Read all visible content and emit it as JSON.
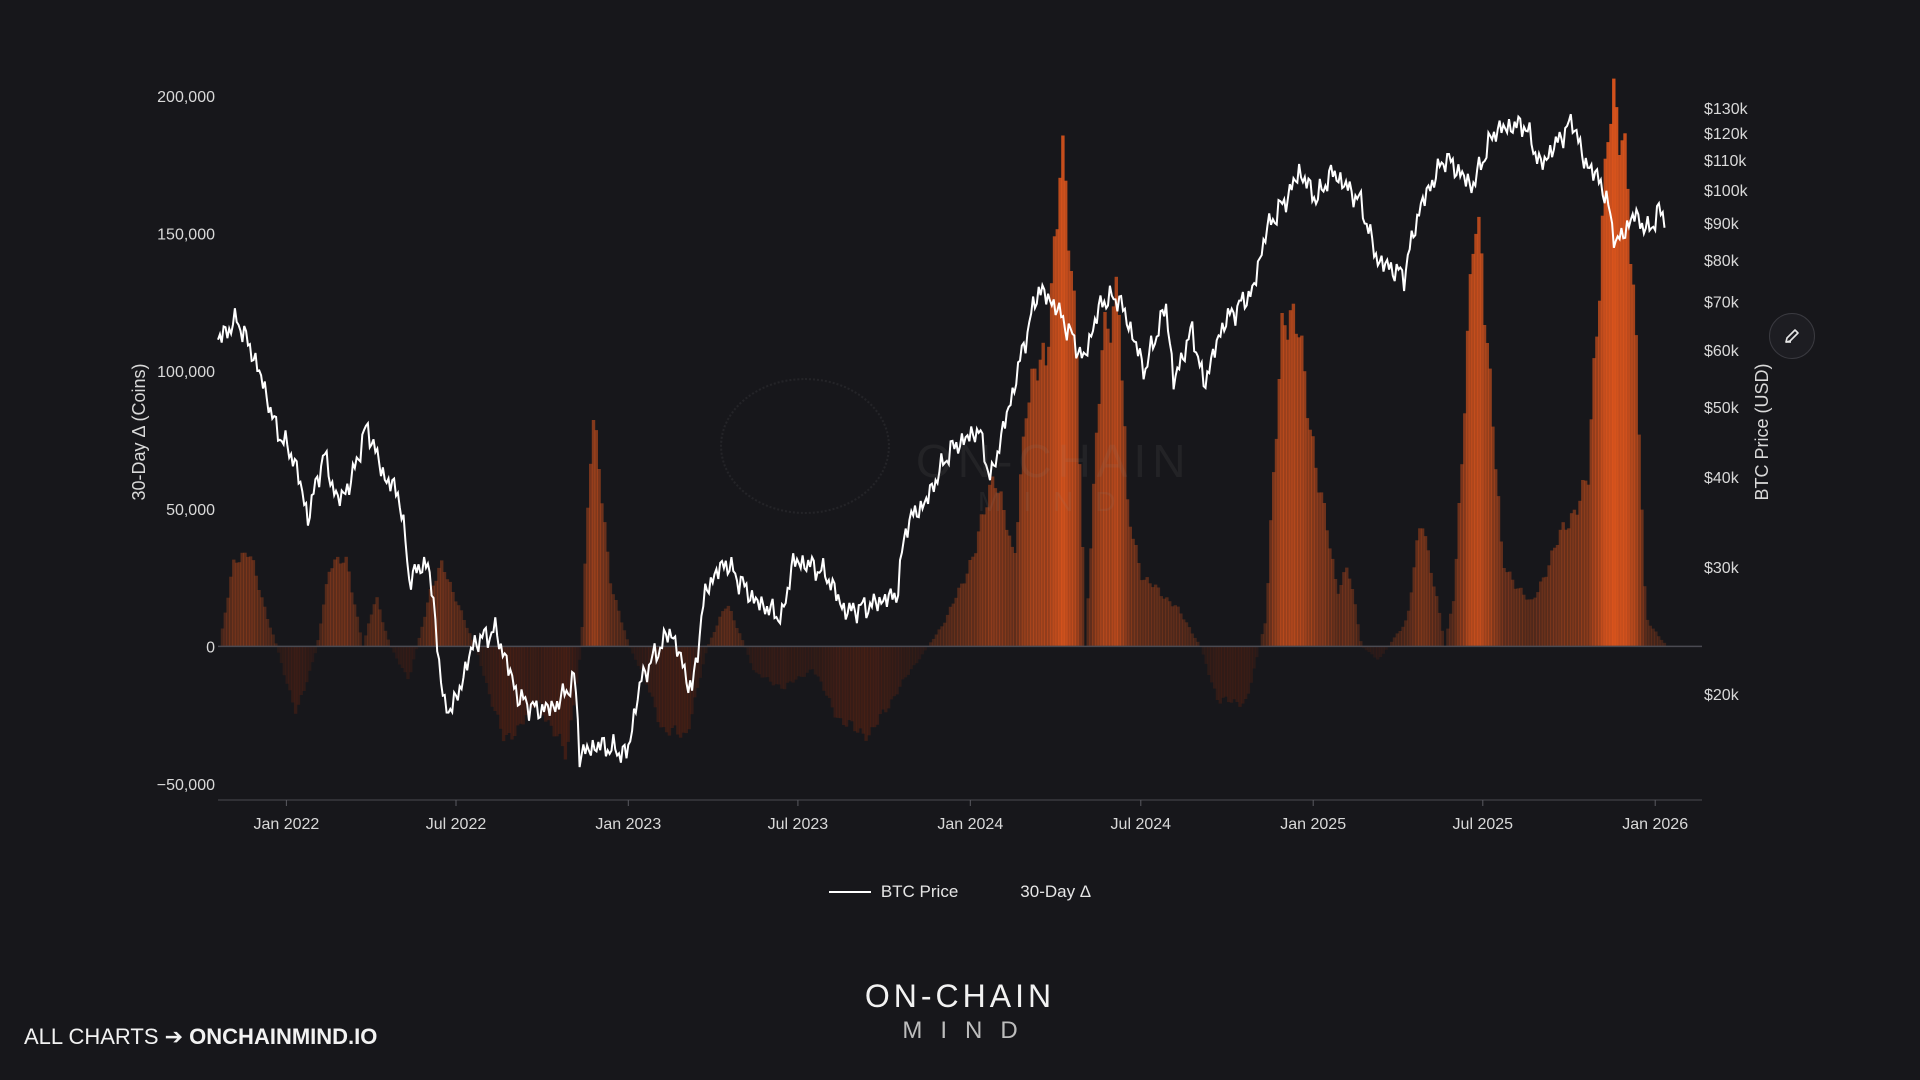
{
  "chart_data": {
    "type": "area+line",
    "title": "",
    "left_axis": {
      "label": "30-Day Δ (Coins)",
      "range": [
        -50000,
        200000
      ],
      "ticks": [
        {
          "value": -50000,
          "label": "−50,000"
        },
        {
          "value": 0,
          "label": "0"
        },
        {
          "value": 50000,
          "label": "50,000"
        },
        {
          "value": 100000,
          "label": "100,000"
        },
        {
          "value": 150000,
          "label": "150,000"
        },
        {
          "value": 200000,
          "label": "200,000"
        }
      ]
    },
    "right_axis": {
      "label": "BTC Price (USD)",
      "scale": "log",
      "range": [
        15000,
        135000
      ],
      "ticks": [
        {
          "value": 20000,
          "label": "$20k"
        },
        {
          "value": 30000,
          "label": "$30k"
        },
        {
          "value": 40000,
          "label": "$40k"
        },
        {
          "value": 50000,
          "label": "$50k"
        },
        {
          "value": 60000,
          "label": "$60k"
        },
        {
          "value": 70000,
          "label": "$70k"
        },
        {
          "value": 80000,
          "label": "$80k"
        },
        {
          "value": 90000,
          "label": "$90k"
        },
        {
          "value": 100000,
          "label": "$100k"
        },
        {
          "value": 110000,
          "label": "$110k"
        },
        {
          "value": 120000,
          "label": "$120k"
        },
        {
          "value": 130000,
          "label": "$130k"
        }
      ]
    },
    "x_axis": {
      "range": [
        "2021-10-20",
        "2026-02-20"
      ],
      "ticks": [
        {
          "value": "2022-01-01",
          "label": "Jan 2022"
        },
        {
          "value": "2022-07-01",
          "label": "Jul 2022"
        },
        {
          "value": "2023-01-01",
          "label": "Jan 2023"
        },
        {
          "value": "2023-07-01",
          "label": "Jul 2023"
        },
        {
          "value": "2024-01-01",
          "label": "Jan 2024"
        },
        {
          "value": "2024-07-01",
          "label": "Jul 2024"
        },
        {
          "value": "2025-01-01",
          "label": "Jan 2025"
        },
        {
          "value": "2025-07-01",
          "label": "Jul 2025"
        },
        {
          "value": "2026-01-01",
          "label": "Jan 2026"
        }
      ]
    },
    "series": [
      {
        "name": "BTC Price",
        "axis": "right",
        "color": "#ffffff",
        "points": [
          [
            "2021-10-20",
            62000
          ],
          [
            "2021-11-10",
            66000
          ],
          [
            "2021-12-01",
            57000
          ],
          [
            "2021-12-20",
            47000
          ],
          [
            "2022-01-10",
            42000
          ],
          [
            "2022-01-24",
            35000
          ],
          [
            "2022-02-10",
            43000
          ],
          [
            "2022-02-24",
            37000
          ],
          [
            "2022-03-10",
            39000
          ],
          [
            "2022-03-28",
            47000
          ],
          [
            "2022-04-15",
            40000
          ],
          [
            "2022-05-01",
            38000
          ],
          [
            "2022-05-12",
            29000
          ],
          [
            "2022-06-01",
            30500
          ],
          [
            "2022-06-18",
            19000
          ],
          [
            "2022-07-01",
            19500
          ],
          [
            "2022-07-20",
            23500
          ],
          [
            "2022-08-12",
            24500
          ],
          [
            "2022-09-05",
            19800
          ],
          [
            "2022-09-25",
            19000
          ],
          [
            "2022-10-15",
            19200
          ],
          [
            "2022-11-05",
            21000
          ],
          [
            "2022-11-10",
            16500
          ],
          [
            "2022-12-01",
            17000
          ],
          [
            "2022-12-31",
            16500
          ],
          [
            "2023-01-15",
            21000
          ],
          [
            "2023-02-15",
            24500
          ],
          [
            "2023-03-10",
            20000
          ],
          [
            "2023-03-25",
            28000
          ],
          [
            "2023-04-14",
            30500
          ],
          [
            "2023-05-15",
            27000
          ],
          [
            "2023-06-15",
            25500
          ],
          [
            "2023-06-25",
            30500
          ],
          [
            "2023-07-15",
            30200
          ],
          [
            "2023-08-01",
            29200
          ],
          [
            "2023-08-20",
            26000
          ],
          [
            "2023-09-15",
            26500
          ],
          [
            "2023-10-15",
            27500
          ],
          [
            "2023-10-25",
            34500
          ],
          [
            "2023-11-15",
            37000
          ],
          [
            "2023-12-10",
            43500
          ],
          [
            "2024-01-10",
            46500
          ],
          [
            "2024-01-23",
            39500
          ],
          [
            "2024-02-15",
            52000
          ],
          [
            "2024-03-05",
            66000
          ],
          [
            "2024-03-14",
            73000
          ],
          [
            "2024-04-01",
            69000
          ],
          [
            "2024-05-01",
            58000
          ],
          [
            "2024-05-20",
            70000
          ],
          [
            "2024-06-07",
            71000
          ],
          [
            "2024-07-05",
            56000
          ],
          [
            "2024-07-28",
            69000
          ],
          [
            "2024-08-05",
            54000
          ],
          [
            "2024-08-25",
            64000
          ],
          [
            "2024-09-06",
            53500
          ],
          [
            "2024-09-28",
            65500
          ],
          [
            "2024-10-29",
            72500
          ],
          [
            "2024-11-12",
            88000
          ],
          [
            "2024-12-05",
            98000
          ],
          [
            "2024-12-17",
            106000
          ],
          [
            "2025-01-05",
            97000
          ],
          [
            "2025-01-21",
            106000
          ],
          [
            "2025-02-20",
            96500
          ],
          [
            "2025-03-10",
            80000
          ],
          [
            "2025-04-08",
            76000
          ],
          [
            "2025-04-25",
            94500
          ],
          [
            "2025-05-22",
            111000
          ],
          [
            "2025-06-20",
            101000
          ],
          [
            "2025-07-14",
            121000
          ],
          [
            "2025-08-14",
            123500
          ],
          [
            "2025-09-01",
            108000
          ],
          [
            "2025-10-06",
            125000
          ],
          [
            "2025-10-15",
            111000
          ],
          [
            "2025-11-05",
            102000
          ],
          [
            "2025-11-21",
            84000
          ],
          [
            "2025-12-10",
            92500
          ],
          [
            "2025-12-25",
            87500
          ],
          [
            "2026-01-05",
            93500
          ],
          [
            "2026-01-12",
            91000
          ]
        ]
      },
      {
        "name": "30-Day Δ",
        "axis": "left",
        "color": "#e0561d",
        "points": [
          [
            "2021-10-20",
            0
          ],
          [
            "2021-11-05",
            32000
          ],
          [
            "2021-11-20",
            35000
          ],
          [
            "2021-12-05",
            16000
          ],
          [
            "2021-12-20",
            0
          ],
          [
            "2022-01-10",
            -25000
          ],
          [
            "2022-02-01",
            0
          ],
          [
            "2022-02-15",
            31000
          ],
          [
            "2022-03-05",
            30000
          ],
          [
            "2022-03-22",
            0
          ],
          [
            "2022-04-05",
            18000
          ],
          [
            "2022-04-20",
            0
          ],
          [
            "2022-05-10",
            -12000
          ],
          [
            "2022-06-01",
            18000
          ],
          [
            "2022-06-15",
            32000
          ],
          [
            "2022-06-25",
            20000
          ],
          [
            "2022-07-20",
            0
          ],
          [
            "2022-08-20",
            -35000
          ],
          [
            "2022-09-25",
            -20000
          ],
          [
            "2022-10-25",
            -40000
          ],
          [
            "2022-11-10",
            0
          ],
          [
            "2022-11-22",
            88000
          ],
          [
            "2022-12-10",
            25000
          ],
          [
            "2022-12-31",
            0
          ],
          [
            "2023-01-15",
            -10000
          ],
          [
            "2023-02-05",
            -30000
          ],
          [
            "2023-03-01",
            -33000
          ],
          [
            "2023-03-25",
            0
          ],
          [
            "2023-04-15",
            16000
          ],
          [
            "2023-05-15",
            -10000
          ],
          [
            "2023-06-15",
            -15000
          ],
          [
            "2023-07-15",
            -8000
          ],
          [
            "2023-08-15",
            -28000
          ],
          [
            "2023-09-15",
            -32000
          ],
          [
            "2023-10-15",
            -15000
          ],
          [
            "2023-11-15",
            0
          ],
          [
            "2023-12-05",
            10000
          ],
          [
            "2024-01-05",
            35000
          ],
          [
            "2024-01-25",
            65000
          ],
          [
            "2024-02-15",
            30000
          ],
          [
            "2024-02-28",
            90000
          ],
          [
            "2024-03-20",
            105000
          ],
          [
            "2024-04-05",
            180000
          ],
          [
            "2024-04-22",
            110000
          ],
          [
            "2024-05-01",
            0
          ],
          [
            "2024-05-20",
            115000
          ],
          [
            "2024-06-05",
            130000
          ],
          [
            "2024-06-15",
            50000
          ],
          [
            "2024-07-01",
            25000
          ],
          [
            "2024-08-05",
            15000
          ],
          [
            "2024-09-01",
            0
          ],
          [
            "2024-09-20",
            -20000
          ],
          [
            "2024-10-20",
            -20000
          ],
          [
            "2024-11-10",
            10000
          ],
          [
            "2024-11-28",
            125000
          ],
          [
            "2024-12-15",
            112000
          ],
          [
            "2025-01-05",
            60000
          ],
          [
            "2025-01-25",
            20000
          ],
          [
            "2025-02-05",
            30000
          ],
          [
            "2025-02-20",
            0
          ],
          [
            "2025-03-10",
            -5000
          ],
          [
            "2025-04-10",
            10000
          ],
          [
            "2025-04-25",
            48000
          ],
          [
            "2025-05-20",
            0
          ],
          [
            "2025-05-30",
            20000
          ],
          [
            "2025-06-20",
            151000
          ],
          [
            "2025-06-28",
            145000
          ],
          [
            "2025-07-20",
            30000
          ],
          [
            "2025-08-20",
            15000
          ],
          [
            "2025-09-20",
            40000
          ],
          [
            "2025-10-20",
            60000
          ],
          [
            "2025-11-10",
            195000
          ],
          [
            "2025-12-01",
            175000
          ],
          [
            "2025-12-10",
            110000
          ],
          [
            "2025-12-20",
            10000
          ],
          [
            "2026-01-12",
            0
          ]
        ]
      }
    ],
    "legend": {
      "placement": "bottom-center",
      "entries": [
        "BTC Price",
        "30-Day Δ"
      ]
    },
    "grid": false
  },
  "watermark": {
    "line1": "ON-CHAIN",
    "line2": "MIND"
  },
  "brand": {
    "line1": "ON-CHAIN",
    "line2": "MIND"
  },
  "footer": {
    "prefix": "ALL CHARTS ➔",
    "site": "ONCHAINMIND.IO"
  },
  "controls": {
    "edit_icon": "pencil-icon"
  }
}
